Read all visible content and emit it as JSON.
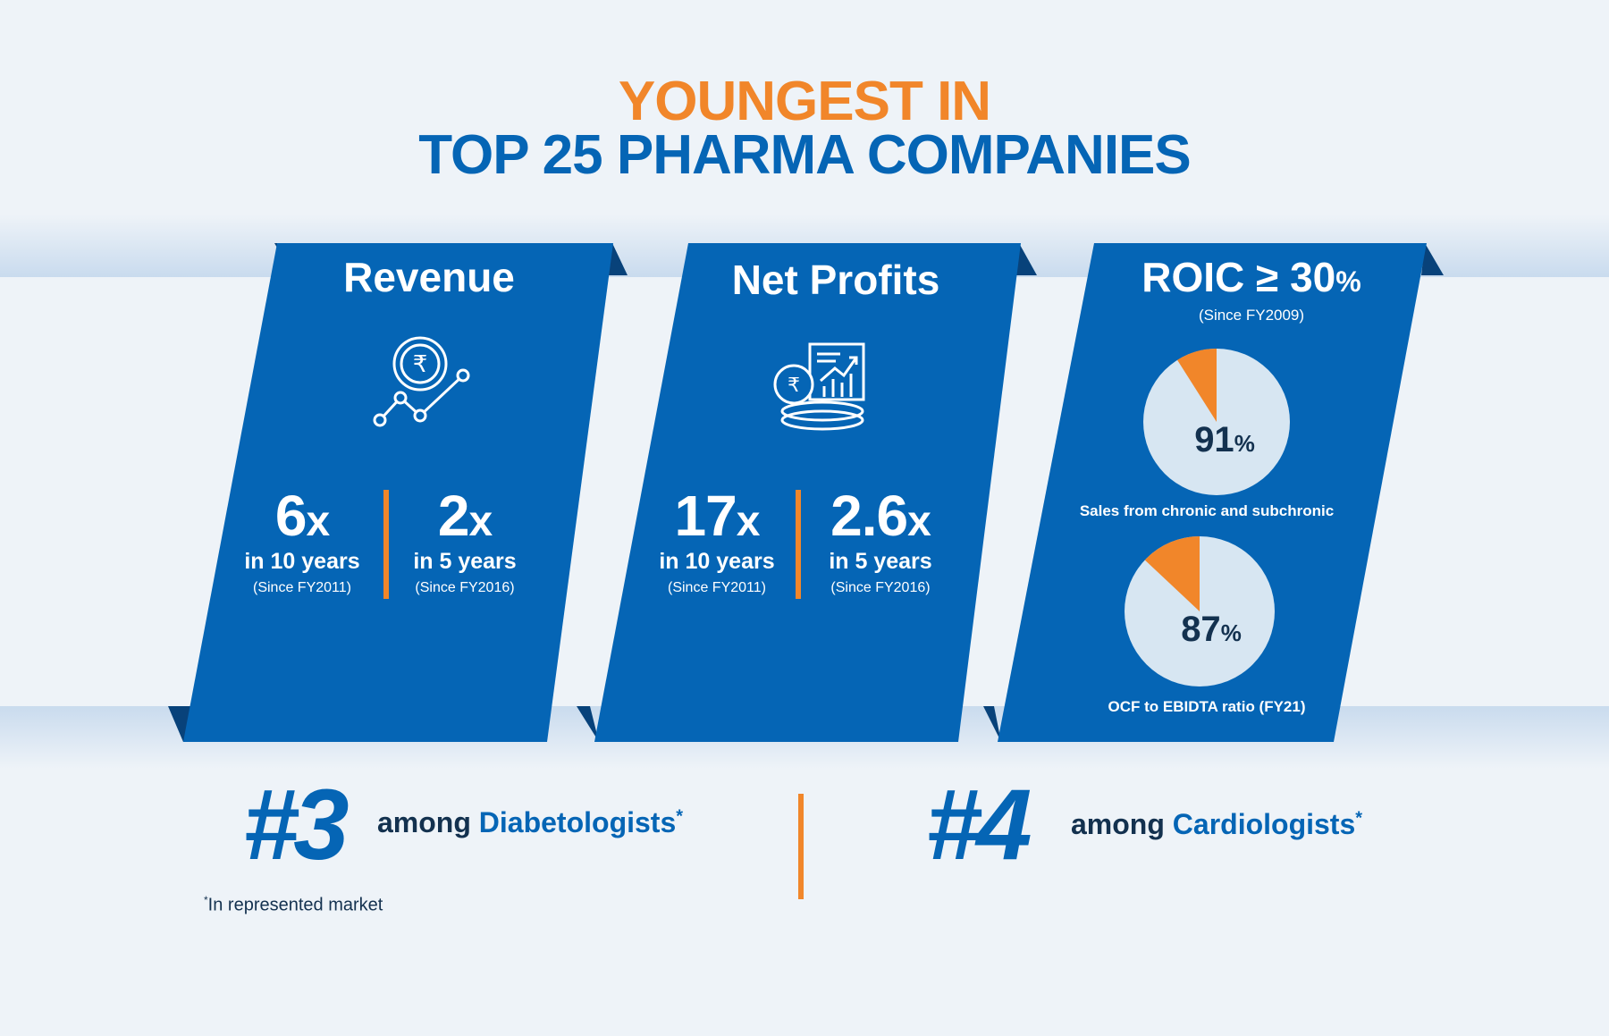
{
  "header": {
    "line1": "YOUNGEST IN",
    "line2": "TOP 25 PHARMA COMPANIES"
  },
  "colors": {
    "blue": "#0565b5",
    "orange": "#f1862a",
    "navy": "#13314f",
    "pie_fill": "#d7e6f2"
  },
  "cards": {
    "revenue": {
      "title": "Revenue",
      "icon": "rupee-growth-chart-icon",
      "left": {
        "value": "6",
        "unit": "x",
        "period": "in 10 years",
        "since": "(Since FY2011)"
      },
      "right": {
        "value": "2",
        "unit": "x",
        "period": "in 5 years",
        "since": "(Since FY2016)"
      }
    },
    "profits": {
      "title": "Net Profits",
      "icon": "rupee-coins-report-icon",
      "left": {
        "value": "17",
        "unit": "x",
        "period": "in 10 years",
        "since": "(Since FY2011)"
      },
      "right": {
        "value": "2.6",
        "unit": "x",
        "period": "in 5 years",
        "since": "(Since FY2016)"
      }
    },
    "roic": {
      "title": "ROIC ≥ 30",
      "title_unit": "%",
      "since": "(Since FY2009)",
      "pie1": {
        "value": "91",
        "unit": "%",
        "fraction": 0.91,
        "caption": "Sales from chronic and subchronic"
      },
      "pie2": {
        "value": "87",
        "unit": "%",
        "fraction": 0.87,
        "caption": "OCF to EBIDTA ratio (FY21)"
      }
    }
  },
  "rankings": {
    "left": {
      "rank": "#3",
      "prefix": "among ",
      "group": "Diabetologists",
      "mark": "*"
    },
    "right": {
      "rank": "#4",
      "prefix": "among ",
      "group": "Cardiologists",
      "mark": "*"
    }
  },
  "footnote": {
    "mark": "*",
    "text": "In represented market"
  }
}
